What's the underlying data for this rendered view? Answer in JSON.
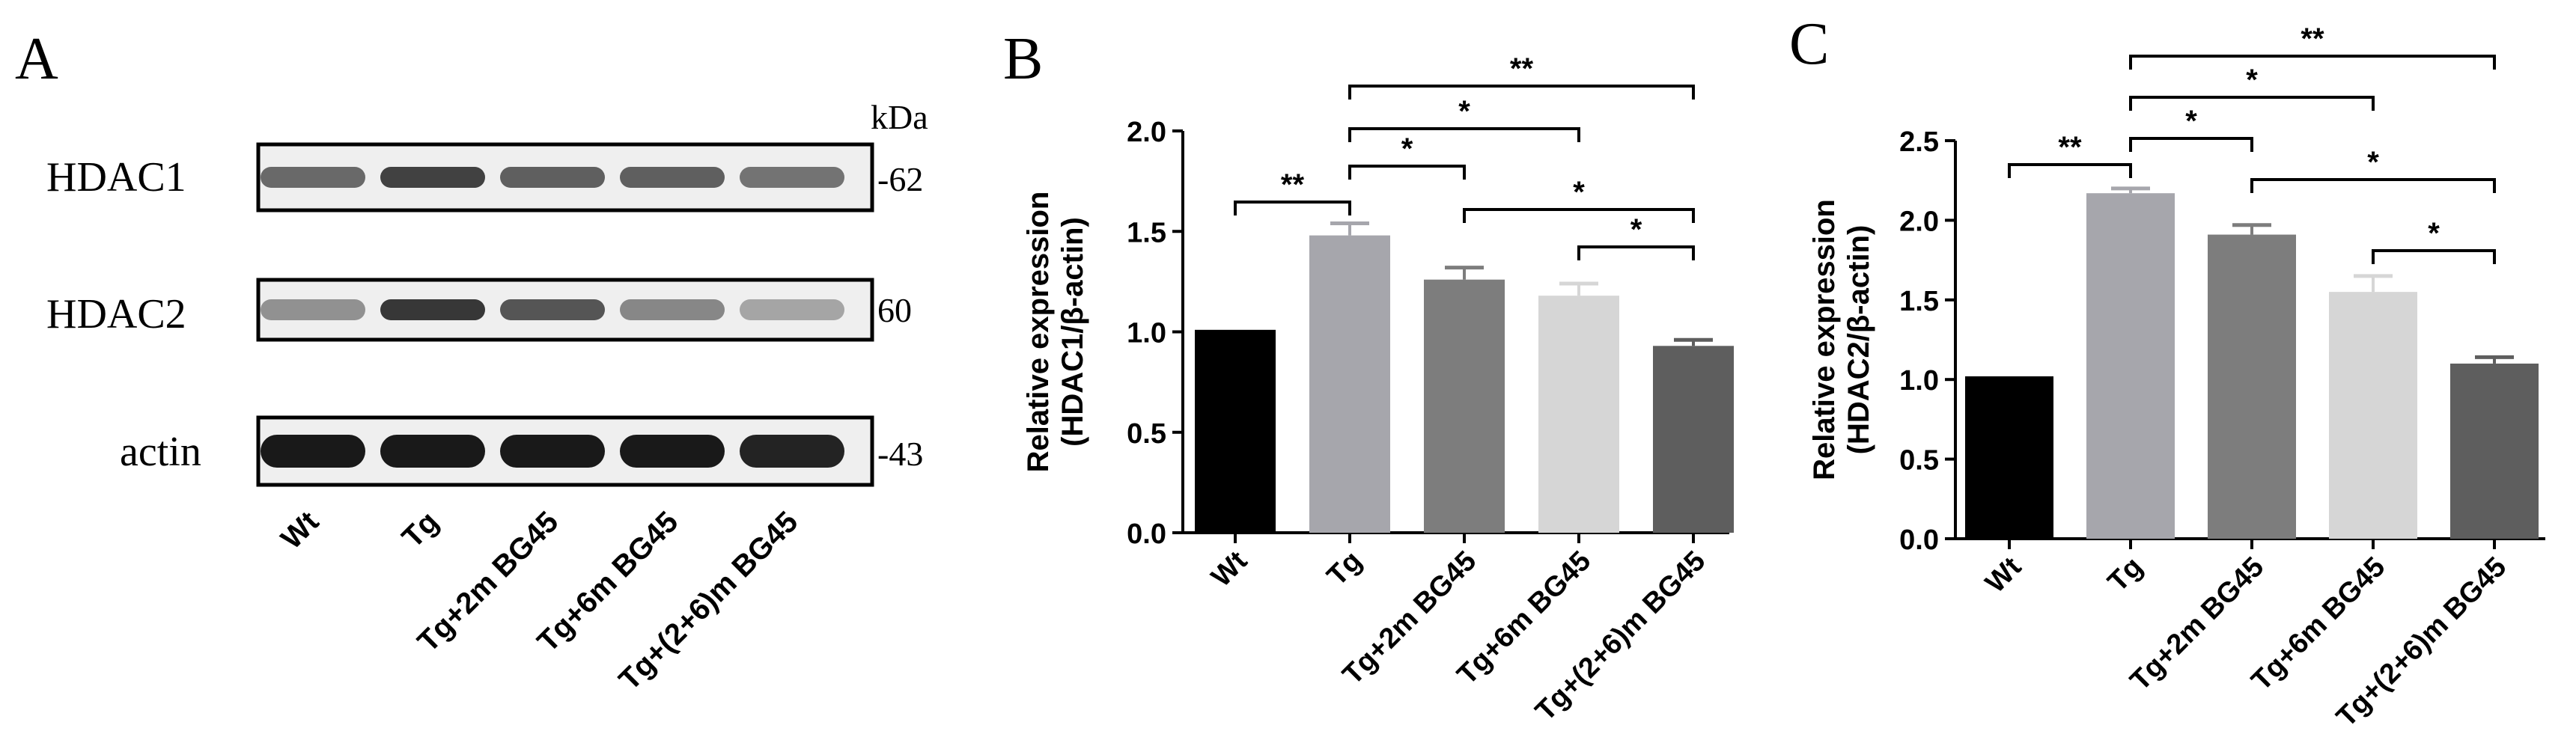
{
  "panel_a": {
    "letter": "A",
    "kda_label": "kDa",
    "lanes": [
      "Wt",
      "Tg",
      "Tg+2m BG45",
      "Tg+6m BG45",
      "Tg+(2+6)m BG45"
    ],
    "blots": [
      {
        "name": "HDAC1",
        "kda": "-62",
        "intensity": [
          0.55,
          0.75,
          0.6,
          0.6,
          0.5
        ]
      },
      {
        "name": "HDAC2",
        "kda": "60",
        "intensity": [
          0.35,
          0.8,
          0.65,
          0.4,
          0.25
        ]
      },
      {
        "name": "actin",
        "kda": "-43",
        "intensity": [
          0.95,
          0.95,
          0.95,
          0.95,
          0.9
        ]
      }
    ]
  },
  "chart_data": [
    {
      "panel": "B",
      "type": "bar",
      "categories": [
        "Wt",
        "Tg",
        "Tg+2m BG45",
        "Tg+6m BG45",
        "Tg+(2+6)m BG45"
      ],
      "values": [
        1.01,
        1.48,
        1.26,
        1.18,
        0.93
      ],
      "errors": [
        0,
        0.06,
        0.06,
        0.06,
        0.03
      ],
      "colors": [
        "#000000",
        "#a6a6ac",
        "#7d7d7d",
        "#d6d6d6",
        "#5e5e5e"
      ],
      "ylabel_line1": "Relative expression",
      "ylabel_line2": "(HDAC1/β-actin)",
      "ylim": [
        0,
        2.0
      ],
      "yticks": [
        0.0,
        0.5,
        1.0,
        1.5,
        2.0
      ],
      "ytick_labels": [
        "0.0",
        "0.5",
        "1.0",
        "1.5",
        "2.0"
      ],
      "significance": [
        {
          "from": 0,
          "to": 1,
          "label": "**"
        },
        {
          "from": 1,
          "to": 2,
          "label": "*"
        },
        {
          "from": 1,
          "to": 3,
          "label": "*"
        },
        {
          "from": 1,
          "to": 4,
          "label": "**"
        },
        {
          "from": 2,
          "to": 4,
          "label": "*"
        },
        {
          "from": 3,
          "to": 4,
          "label": "*"
        }
      ]
    },
    {
      "panel": "C",
      "type": "bar",
      "categories": [
        "Wt",
        "Tg",
        "Tg+2m BG45",
        "Tg+6m BG45",
        "Tg+(2+6)m BG45"
      ],
      "values": [
        1.02,
        2.17,
        1.91,
        1.55,
        1.1
      ],
      "errors": [
        0,
        0.03,
        0.06,
        0.1,
        0.04
      ],
      "colors": [
        "#000000",
        "#a6a6ac",
        "#7d7d7d",
        "#d6d6d6",
        "#5e5e5e"
      ],
      "ylabel_line1": "Relative expression",
      "ylabel_line2": "(HDAC2/β-actin)",
      "ylim": [
        0,
        2.5
      ],
      "yticks": [
        0.0,
        0.5,
        1.0,
        1.5,
        2.0,
        2.5
      ],
      "ytick_labels": [
        "0.0",
        "0.5",
        "1.0",
        "1.5",
        "2.0",
        "2.5"
      ],
      "significance": [
        {
          "from": 0,
          "to": 1,
          "label": "**"
        },
        {
          "from": 1,
          "to": 2,
          "label": "*"
        },
        {
          "from": 1,
          "to": 3,
          "label": "*"
        },
        {
          "from": 1,
          "to": 4,
          "label": "**"
        },
        {
          "from": 2,
          "to": 4,
          "label": "*"
        },
        {
          "from": 3,
          "to": 4,
          "label": "*"
        }
      ]
    }
  ]
}
